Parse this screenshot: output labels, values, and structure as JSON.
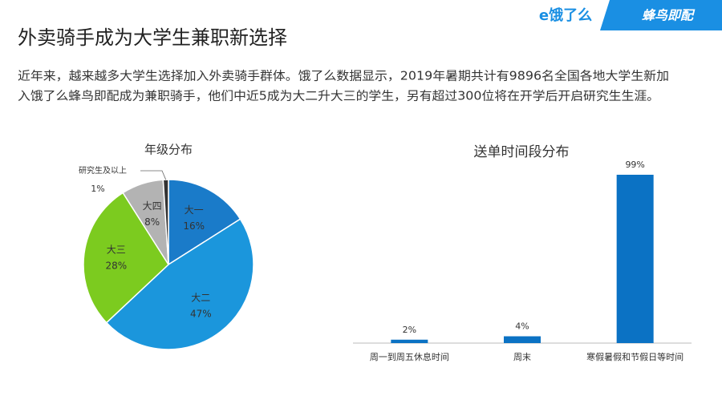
{
  "header": {
    "title": "外卖骑手成为大学生兼职新选择",
    "paragraph": [
      "近年来，越来越多大学生选择加入外卖骑手群体。饿了么数据显示，2019年暑期共计有9896名全国各地大学生新加",
      "入饿了么蜂鸟即配成为兼职骑手，他们中近5成为大二升大三的学生，另有超过300位将在开学后开启研究生生涯。"
    ],
    "brand_left": "e饿了么",
    "brand_right": "蜂鸟即配"
  },
  "chart_data": [
    {
      "type": "pie",
      "title": "年级分布",
      "categories": [
        "大一",
        "大二",
        "大三",
        "大四",
        "研究生及以上"
      ],
      "values": [
        16,
        47,
        28,
        8,
        1
      ],
      "value_labels": [
        "16%",
        "47%",
        "28%",
        "8%",
        "1%"
      ],
      "colors": [
        "#1a7bc9",
        "#1b96dc",
        "#7ccb1f",
        "#b3b3b3",
        "#333333"
      ]
    },
    {
      "type": "bar",
      "title": "送单时间段分布",
      "categories": [
        "周一到周五休息时间",
        "周末",
        "寒假暑假和节假日等时间"
      ],
      "values": [
        2,
        4,
        99
      ],
      "value_labels": [
        "2%",
        "4%",
        "99%"
      ],
      "color": "#0b72c4"
    }
  ]
}
